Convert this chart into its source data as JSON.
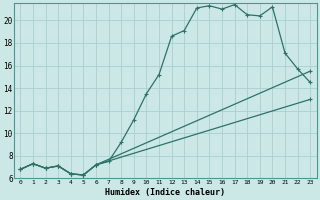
{
  "xlabel": "Humidex (Indice chaleur)",
  "bg_color": "#cce8e6",
  "line_color": "#2d7268",
  "grid_color": "#aacfcc",
  "xlim": [
    -0.5,
    23.5
  ],
  "ylim": [
    6,
    21.5
  ],
  "xticks": [
    0,
    1,
    2,
    3,
    4,
    5,
    6,
    7,
    8,
    9,
    10,
    11,
    12,
    13,
    14,
    15,
    16,
    17,
    18,
    19,
    20,
    21,
    22,
    23
  ],
  "yticks": [
    6,
    8,
    10,
    12,
    14,
    16,
    18,
    20
  ],
  "curve1_x": [
    0,
    1,
    2,
    3,
    4,
    5,
    6,
    7,
    8,
    9,
    10,
    11,
    12,
    13,
    14,
    15,
    16,
    17,
    18,
    19,
    20,
    21,
    22,
    23
  ],
  "curve1_y": [
    6.8,
    7.3,
    6.9,
    7.1,
    6.4,
    6.3,
    7.2,
    7.5,
    9.2,
    11.2,
    13.5,
    15.2,
    18.6,
    19.1,
    21.1,
    21.3,
    21.0,
    21.4,
    20.5,
    20.4,
    21.2,
    17.1,
    15.7,
    14.5
  ],
  "curve2_x": [
    0,
    1,
    2,
    3,
    4,
    5,
    6,
    23
  ],
  "curve2_y": [
    6.8,
    7.3,
    6.9,
    7.1,
    6.4,
    6.3,
    7.2,
    15.5
  ],
  "curve3_x": [
    0,
    1,
    2,
    3,
    4,
    5,
    6,
    23
  ],
  "curve3_y": [
    6.8,
    7.3,
    6.9,
    7.1,
    6.4,
    6.3,
    7.2,
    13.0
  ]
}
